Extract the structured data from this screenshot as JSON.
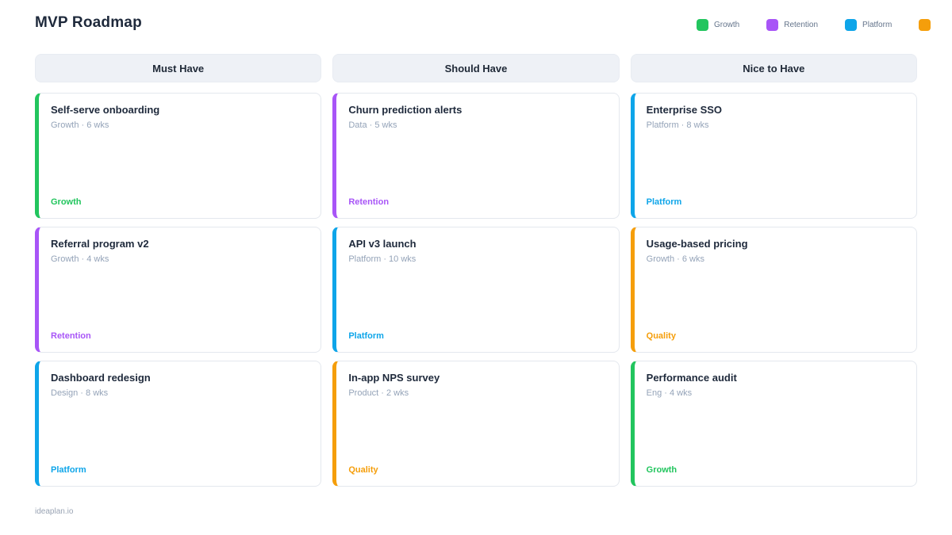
{
  "page": {
    "title": "MVP Roadmap",
    "footer": "ideaplan.io"
  },
  "colors": {
    "growth": "#22c55e",
    "retention": "#a855f7",
    "platform": "#0ea5e9",
    "quality": "#f59e0b"
  },
  "legend": {
    "items": [
      {
        "label": "Growth",
        "color": "#22c55e"
      },
      {
        "label": "Retention",
        "color": "#a855f7"
      },
      {
        "label": "Platform",
        "color": "#0ea5e9"
      },
      {
        "label": "",
        "color": "#f59e0b"
      }
    ]
  },
  "board": {
    "columns": [
      {
        "header": "Must Have",
        "cards": [
          {
            "title": "Self-serve onboarding",
            "meta": "Growth · 6 wks",
            "tag": "Growth",
            "color": "#22c55e"
          },
          {
            "title": "Referral program v2",
            "meta": "Growth · 4 wks",
            "tag": "Retention",
            "color": "#a855f7"
          },
          {
            "title": "Dashboard redesign",
            "meta": "Design · 8 wks",
            "tag": "Platform",
            "color": "#0ea5e9"
          }
        ]
      },
      {
        "header": "Should Have",
        "cards": [
          {
            "title": "Churn prediction alerts",
            "meta": "Data · 5 wks",
            "tag": "Retention",
            "color": "#a855f7"
          },
          {
            "title": "API v3 launch",
            "meta": "Platform · 10 wks",
            "tag": "Platform",
            "color": "#0ea5e9"
          },
          {
            "title": "In-app NPS survey",
            "meta": "Product · 2 wks",
            "tag": "Quality",
            "color": "#f59e0b"
          }
        ]
      },
      {
        "header": "Nice to Have",
        "cards": [
          {
            "title": "Enterprise SSO",
            "meta": "Platform · 8 wks",
            "tag": "Platform",
            "color": "#0ea5e9"
          },
          {
            "title": "Usage-based pricing",
            "meta": "Growth · 6 wks",
            "tag": "Quality",
            "color": "#f59e0b"
          },
          {
            "title": "Performance audit",
            "meta": "Eng · 4 wks",
            "tag": "Growth",
            "color": "#22c55e"
          }
        ]
      }
    ]
  }
}
